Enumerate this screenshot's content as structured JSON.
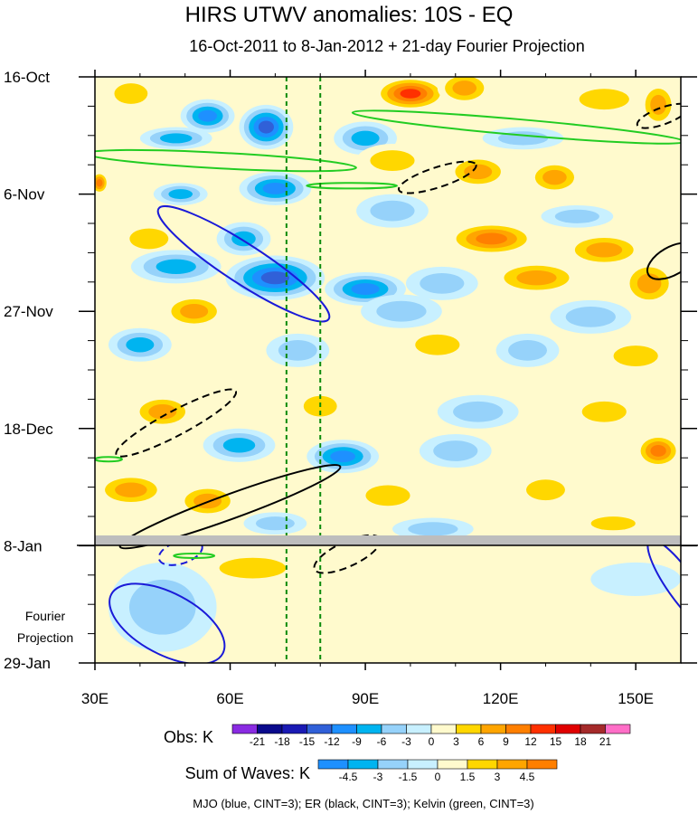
{
  "chart_data": {
    "type": "heatmap",
    "title": "HIRS UTWV anomalies: 10S - EQ",
    "subtitle": "16-Oct-2011 to 8-Jan-2012 + 21-day Fourier Projection",
    "xlabel": "",
    "ylabel": "",
    "x_axis": {
      "range": [
        30,
        160
      ],
      "ticks": [
        30,
        60,
        90,
        120,
        150
      ],
      "tick_labels": [
        "30E",
        "60E",
        "90E",
        "120E",
        "150E"
      ]
    },
    "y_axis": {
      "range_days": [
        0,
        105
      ],
      "ticks_days": [
        0,
        21,
        42,
        63,
        84,
        105
      ],
      "tick_labels": [
        "16-Oct",
        "6-Nov",
        "27-Nov",
        "18-Dec",
        "8-Jan",
        "29-Jan"
      ]
    },
    "forecast_start_day": 84,
    "projection_label_line1": "Fourier",
    "projection_label_line2": "Projection",
    "reference_longitudes": [
      72.5,
      80
    ],
    "obs_colorbar": {
      "title": "Obs: K",
      "levels": [
        "-21",
        "-18",
        "-15",
        "-12",
        "-9",
        "-6",
        "-3",
        "0",
        "3",
        "6",
        "9",
        "12",
        "15",
        "18",
        "21"
      ],
      "colors": [
        "#8a2be2",
        "#0a0a8c",
        "#1a1ab4",
        "#3060d8",
        "#1e90ff",
        "#00b4f0",
        "#96d2fa",
        "#c8f0ff",
        "#fffacd",
        "#ffd700",
        "#ffa500",
        "#ff7f00",
        "#ff3000",
        "#e00000",
        "#a52a2a",
        "#ff6ec7"
      ]
    },
    "waves_colorbar": {
      "title": "Sum of Waves: K",
      "levels": [
        "-4.5",
        "-3",
        "-1.5",
        "0",
        "1.5",
        "3",
        "4.5"
      ],
      "colors": [
        "#1e90ff",
        "#00b4f0",
        "#96d2fa",
        "#c8f0ff",
        "#fffacd",
        "#ffd700",
        "#ffa500",
        "#ff7f00"
      ]
    },
    "contours_caption": "MJO (blue, CINT=3); ER (black, CINT=3); Kelvin (green, CINT=3)",
    "contour_colors": {
      "mjo": "#1a1ad8",
      "er": "#000000",
      "kelvin": "#22cc22"
    },
    "observed_features": [
      {
        "lon": 38,
        "lat_day": 3,
        "rx": 6,
        "ry": 3,
        "k": 2
      },
      {
        "lon": 52,
        "lat_day": 2,
        "rx": 7,
        "ry": 3,
        "k": 1
      },
      {
        "lon": 100,
        "lat_day": 3,
        "rx": 8,
        "ry": 3,
        "k": 5
      },
      {
        "lon": 112,
        "lat_day": 2,
        "rx": 6,
        "ry": 3,
        "k": 3
      },
      {
        "lon": 143,
        "lat_day": 4,
        "rx": 9,
        "ry": 3,
        "k": 2
      },
      {
        "lon": 155,
        "lat_day": 5,
        "rx": 4,
        "ry": 4,
        "k": 3
      },
      {
        "lon": 55,
        "lat_day": 7,
        "rx": 6,
        "ry": 3,
        "k": -4
      },
      {
        "lon": 68,
        "lat_day": 9,
        "rx": 6,
        "ry": 4,
        "k": -5
      },
      {
        "lon": 48,
        "lat_day": 11,
        "rx": 8,
        "ry": 2,
        "k": -3
      },
      {
        "lon": 90,
        "lat_day": 11,
        "rx": 7,
        "ry": 3,
        "k": -3
      },
      {
        "lon": 125,
        "lat_day": 11,
        "rx": 9,
        "ry": 2,
        "k": -2
      },
      {
        "lon": 96,
        "lat_day": 15,
        "rx": 8,
        "ry": 3,
        "k": 2
      },
      {
        "lon": 115,
        "lat_day": 17,
        "rx": 7,
        "ry": 3,
        "k": 3
      },
      {
        "lon": 132,
        "lat_day": 18,
        "rx": 6,
        "ry": 3,
        "k": 3
      },
      {
        "lon": 31,
        "lat_day": 19,
        "rx": 2,
        "ry": 2,
        "k": 4
      },
      {
        "lon": 70,
        "lat_day": 20,
        "rx": 8,
        "ry": 3,
        "k": -4
      },
      {
        "lon": 49,
        "lat_day": 21,
        "rx": 6,
        "ry": 2,
        "k": -3
      },
      {
        "lon": 96,
        "lat_day": 24,
        "rx": 8,
        "ry": 3,
        "k": -2
      },
      {
        "lon": 137,
        "lat_day": 25,
        "rx": 8,
        "ry": 2,
        "k": -2
      },
      {
        "lon": 42,
        "lat_day": 29,
        "rx": 7,
        "ry": 3,
        "k": 2
      },
      {
        "lon": 63,
        "lat_day": 29,
        "rx": 6,
        "ry": 3,
        "k": -3
      },
      {
        "lon": 118,
        "lat_day": 29,
        "rx": 10,
        "ry": 3,
        "k": 4
      },
      {
        "lon": 143,
        "lat_day": 31,
        "rx": 9,
        "ry": 3,
        "k": 3
      },
      {
        "lon": 48,
        "lat_day": 34,
        "rx": 10,
        "ry": 3,
        "k": -3
      },
      {
        "lon": 70,
        "lat_day": 36,
        "rx": 11,
        "ry": 4,
        "k": -5
      },
      {
        "lon": 90,
        "lat_day": 38,
        "rx": 9,
        "ry": 3,
        "k": -4
      },
      {
        "lon": 107,
        "lat_day": 37,
        "rx": 8,
        "ry": 3,
        "k": -2
      },
      {
        "lon": 128,
        "lat_day": 36,
        "rx": 10,
        "ry": 3,
        "k": 3
      },
      {
        "lon": 153,
        "lat_day": 37,
        "rx": 6,
        "ry": 4,
        "k": 3
      },
      {
        "lon": 52,
        "lat_day": 42,
        "rx": 7,
        "ry": 3,
        "k": 3
      },
      {
        "lon": 98,
        "lat_day": 42,
        "rx": 9,
        "ry": 3,
        "k": -2
      },
      {
        "lon": 140,
        "lat_day": 43,
        "rx": 9,
        "ry": 3,
        "k": -2
      },
      {
        "lon": 40,
        "lat_day": 48,
        "rx": 7,
        "ry": 3,
        "k": -3
      },
      {
        "lon": 75,
        "lat_day": 49,
        "rx": 7,
        "ry": 3,
        "k": -2
      },
      {
        "lon": 106,
        "lat_day": 48,
        "rx": 8,
        "ry": 3,
        "k": 2
      },
      {
        "lon": 126,
        "lat_day": 49,
        "rx": 7,
        "ry": 3,
        "k": -2
      },
      {
        "lon": 150,
        "lat_day": 50,
        "rx": 8,
        "ry": 3,
        "k": 2
      },
      {
        "lon": 45,
        "lat_day": 60,
        "rx": 7,
        "ry": 3,
        "k": 3
      },
      {
        "lon": 80,
        "lat_day": 59,
        "rx": 6,
        "ry": 3,
        "k": 2
      },
      {
        "lon": 115,
        "lat_day": 60,
        "rx": 9,
        "ry": 3,
        "k": -2
      },
      {
        "lon": 143,
        "lat_day": 60,
        "rx": 8,
        "ry": 3,
        "k": 2
      },
      {
        "lon": 62,
        "lat_day": 66,
        "rx": 8,
        "ry": 3,
        "k": -3
      },
      {
        "lon": 85,
        "lat_day": 68,
        "rx": 8,
        "ry": 3,
        "k": -4
      },
      {
        "lon": 110,
        "lat_day": 67,
        "rx": 8,
        "ry": 3,
        "k": -2
      },
      {
        "lon": 155,
        "lat_day": 67,
        "rx": 5,
        "ry": 3,
        "k": 4
      },
      {
        "lon": 38,
        "lat_day": 74,
        "rx": 8,
        "ry": 3,
        "k": 3
      },
      {
        "lon": 55,
        "lat_day": 76,
        "rx": 7,
        "ry": 3,
        "k": 3
      },
      {
        "lon": 95,
        "lat_day": 75,
        "rx": 8,
        "ry": 3,
        "k": 2
      },
      {
        "lon": 130,
        "lat_day": 74,
        "rx": 7,
        "ry": 3,
        "k": 2
      },
      {
        "lon": 70,
        "lat_day": 80,
        "rx": 7,
        "ry": 2,
        "k": -2
      },
      {
        "lon": 105,
        "lat_day": 81,
        "rx": 9,
        "ry": 2,
        "k": -2
      },
      {
        "lon": 145,
        "lat_day": 80,
        "rx": 8,
        "ry": 2,
        "k": 2
      }
    ],
    "projection_features": [
      {
        "lon": 45,
        "lat_day": 95,
        "rx": 12,
        "ry": 8,
        "k": -2
      },
      {
        "lon": 65,
        "lat_day": 88,
        "rx": 12,
        "ry": 3,
        "k": 2
      },
      {
        "lon": 110,
        "lat_day": 89,
        "rx": 14,
        "ry": 3,
        "k": 1
      },
      {
        "lon": 125,
        "lat_day": 98,
        "rx": 22,
        "ry": 7,
        "k": 1
      },
      {
        "lon": 150,
        "lat_day": 90,
        "rx": 10,
        "ry": 3,
        "k": -1
      }
    ],
    "mjo_contours": [
      {
        "lon_c": 63,
        "day_c": 33.5,
        "a": 22.5,
        "b": 3.5,
        "angle": 33,
        "dashed": false
      },
      {
        "lon_c": 46,
        "day_c": 98,
        "a": 14,
        "b": 5.5,
        "angle": 28,
        "dashed": false
      },
      {
        "lon_c": 49,
        "day_c": 85.2,
        "a": 5,
        "b": 2,
        "angle": -18,
        "dashed": true
      },
      {
        "lon_c": 160,
        "day_c": 91,
        "a": 12,
        "b": 2.5,
        "angle": 55,
        "dashed": false
      }
    ],
    "er_contours": [
      {
        "lon_c": 48,
        "day_c": 62,
        "a": 15,
        "b": 2.2,
        "angle": -28,
        "dashed": true
      },
      {
        "lon_c": 60,
        "day_c": 77,
        "a": 26,
        "b": 2.2,
        "angle": -20,
        "dashed": false
      },
      {
        "lon_c": 106,
        "day_c": 18,
        "a": 9,
        "b": 1.8,
        "angle": -18,
        "dashed": true
      },
      {
        "lon_c": 86,
        "day_c": 85.5,
        "a": 8,
        "b": 2.2,
        "angle": -25,
        "dashed": true
      },
      {
        "lon_c": 156,
        "day_c": 7,
        "a": 6,
        "b": 1.5,
        "angle": -20,
        "dashed": true
      },
      {
        "lon_c": 158,
        "day_c": 33,
        "a": 6,
        "b": 2.5,
        "angle": -30,
        "dashed": false
      }
    ],
    "kelvin_contours": [
      {
        "lon_c": 124,
        "day_c": 9,
        "a": 37,
        "b": 1.4,
        "angle": 5,
        "dashed": false
      },
      {
        "lon_c": 58,
        "day_c": 15,
        "a": 30,
        "b": 1.4,
        "angle": 3,
        "dashed": false
      },
      {
        "lon_c": 87,
        "day_c": 19.5,
        "a": 10,
        "b": 0.5,
        "angle": 0,
        "dashed": false
      },
      {
        "lon_c": 52,
        "day_c": 85.8,
        "a": 4.5,
        "b": 0.4,
        "angle": 0,
        "dashed": false
      },
      {
        "lon_c": 33,
        "day_c": 68.5,
        "a": 3,
        "b": 0.4,
        "angle": 0,
        "dashed": false
      }
    ]
  }
}
